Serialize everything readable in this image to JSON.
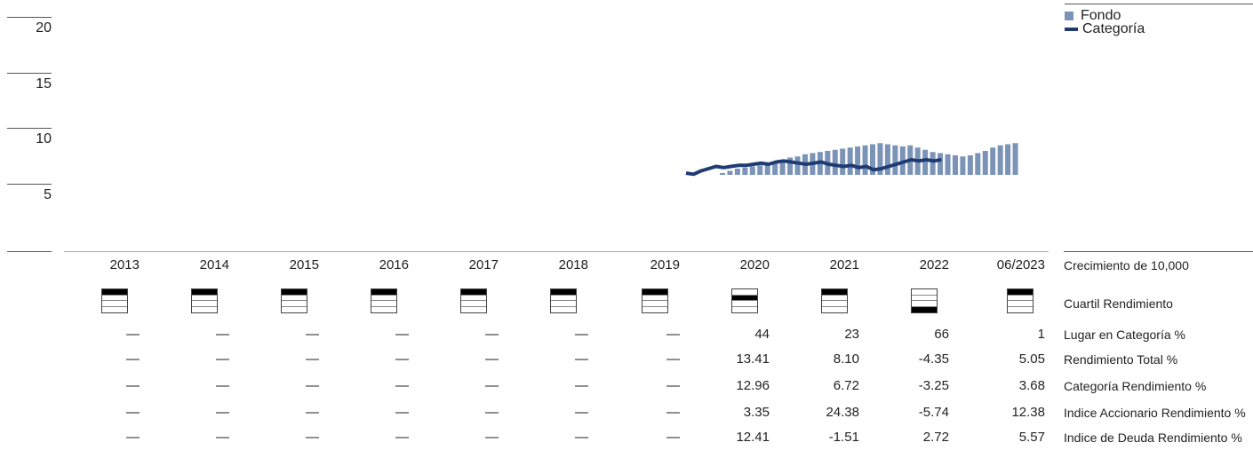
{
  "legend": {
    "fund_label": "Fondo",
    "category_label": "Categoría"
  },
  "colors": {
    "fund_bar": "#7b93b7",
    "category_line": "#1f3b73"
  },
  "chart_data": {
    "type": "bar",
    "title": "",
    "xlabel": "",
    "ylabel": "",
    "ylim": [
      0,
      20
    ],
    "yticks": [
      "20",
      "15",
      "10",
      "5"
    ],
    "x_axis_labels": [
      "2013",
      "2014",
      "2015",
      "2016",
      "2017",
      "2018",
      "2019",
      "2020",
      "2021",
      "2022",
      "06/2023"
    ],
    "series": [
      {
        "name": "Fondo",
        "kind": "bar",
        "values": [
          6.0,
          6.2,
          6.4,
          6.5,
          6.6,
          6.7,
          6.9,
          7.0,
          7.2,
          7.4,
          7.5,
          7.7,
          7.8,
          7.9,
          8.0,
          8.1,
          8.2,
          8.3,
          8.4,
          8.5,
          8.6,
          8.7,
          8.6,
          8.5,
          8.4,
          8.5,
          8.3,
          8.1,
          7.9,
          7.8,
          7.7,
          7.6,
          7.5,
          7.6,
          7.8,
          8.0,
          8.3,
          8.5,
          8.6,
          8.7
        ]
      },
      {
        "name": "Categoría",
        "kind": "line",
        "values": [
          6.0,
          5.9,
          6.2,
          6.4,
          6.6,
          6.5,
          6.6,
          6.7,
          6.7,
          6.8,
          6.9,
          6.8,
          7.0,
          7.1,
          7.0,
          6.9,
          6.8,
          6.9,
          7.0,
          6.8,
          6.7,
          6.6,
          6.7,
          6.5,
          6.6,
          6.3,
          6.4,
          6.6,
          6.8,
          7.0,
          7.2,
          7.1,
          7.2,
          7.1,
          7.2
        ]
      }
    ]
  },
  "table": {
    "rows": [
      {
        "label": "Crecimiento de 10,000",
        "values": [
          "2013",
          "2014",
          "2015",
          "2016",
          "2017",
          "2018",
          "2019",
          "2020",
          "2021",
          "2022",
          "06/2023"
        ]
      },
      {
        "label": "Cuartil Rendimiento",
        "quartiles": [
          1,
          1,
          1,
          1,
          1,
          1,
          1,
          2,
          1,
          4,
          1
        ]
      },
      {
        "label": "Lugar en Categoría %",
        "values": [
          "—",
          "—",
          "—",
          "—",
          "—",
          "—",
          "—",
          "44",
          "23",
          "66",
          "1"
        ]
      },
      {
        "label": "Rendimiento Total %",
        "values": [
          "—",
          "—",
          "—",
          "—",
          "—",
          "—",
          "—",
          "13.41",
          "8.10",
          "-4.35",
          "5.05"
        ]
      },
      {
        "label": "Categoría Rendimiento %",
        "values": [
          "—",
          "—",
          "—",
          "—",
          "—",
          "—",
          "—",
          "12.96",
          "6.72",
          "-3.25",
          "3.68"
        ]
      },
      {
        "label": "Indice Accionario Rendimiento %",
        "values": [
          "—",
          "—",
          "—",
          "—",
          "—",
          "—",
          "—",
          "3.35",
          "24.38",
          "-5.74",
          "12.38"
        ]
      },
      {
        "label": "Indice de Deuda Rendimiento %",
        "values": [
          "—",
          "—",
          "—",
          "—",
          "—",
          "—",
          "—",
          "12.41",
          "-1.51",
          "2.72",
          "5.57"
        ]
      }
    ]
  }
}
